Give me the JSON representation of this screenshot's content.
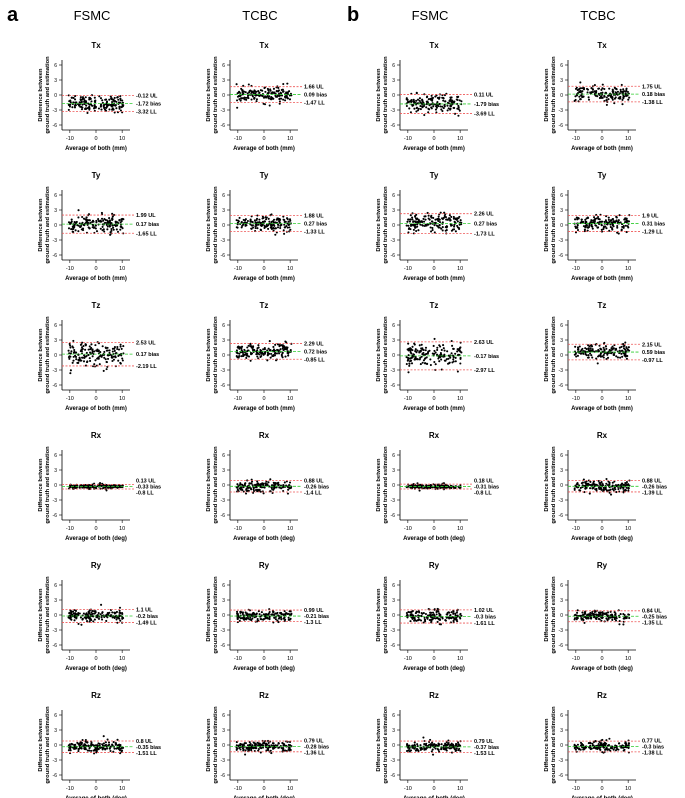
{
  "panel_letters": [
    "a",
    "b"
  ],
  "group_titles": [
    "FSMC",
    "TCBC",
    "FSMC",
    "TCBC"
  ],
  "y_axis_label": [
    "Difference between",
    "ground truth and estimation"
  ],
  "x_labels": {
    "mm": "Average of both (mm)",
    "deg": "Average of both (deg)"
  },
  "x_ticks": [
    "-10",
    "0",
    "10"
  ],
  "y_ticks": [
    "6",
    "3",
    "0",
    "-3",
    "-6"
  ],
  "colors": {
    "points": "#000000",
    "bias": "#2ecc2e",
    "limits": "#ee5555",
    "axis": "#000000"
  },
  "chart_data": {
    "type": "scatter",
    "description": "Bland-Altman plots; rows Tx,Ty,Tz,Rx,Ry,Rz; columns a-FSMC, a-TCBC, b-FSMC, b-TCBC",
    "xlim": [
      -13,
      13
    ],
    "ylim": [
      -7,
      7
    ],
    "rows": [
      "Tx",
      "Ty",
      "Tz",
      "Rx",
      "Ry",
      "Rz"
    ],
    "row_units": [
      "mm",
      "mm",
      "mm",
      "deg",
      "deg",
      "deg"
    ],
    "panels": [
      [
        {
          "title": "Tx",
          "ul": -0.12,
          "bias": -1.72,
          "ll": -3.32,
          "labels": [
            "-0.12 UL",
            "-1.72 bias",
            "-3.32 LL"
          ]
        },
        {
          "title": "Tx",
          "ul": 1.66,
          "bias": 0.09,
          "ll": -1.47,
          "labels": [
            "1.66 UL",
            "0.09 bias",
            "-1.47 LL"
          ]
        },
        {
          "title": "Tx",
          "ul": 0.11,
          "bias": -1.79,
          "ll": -3.69,
          "labels": [
            "0.11 UL",
            "-1.79 bias",
            "-3.69 LL"
          ]
        },
        {
          "title": "Tx",
          "ul": 1.75,
          "bias": 0.18,
          "ll": -1.38,
          "labels": [
            "1.75 UL",
            "0.18 bias",
            "-1.38 LL"
          ]
        }
      ],
      [
        {
          "title": "Ty",
          "ul": 1.99,
          "bias": 0.17,
          "ll": -1.65,
          "labels": [
            "1.99 UL",
            "0.17 bias",
            "-1.65 LL"
          ]
        },
        {
          "title": "Ty",
          "ul": 1.88,
          "bias": 0.27,
          "ll": -1.33,
          "labels": [
            "1.88 UL",
            "0.27 bias",
            "-1.33 LL"
          ]
        },
        {
          "title": "Ty",
          "ul": 2.26,
          "bias": 0.27,
          "ll": -1.73,
          "labels": [
            "2.26 UL",
            "0.27 bias",
            "-1.73 LL"
          ]
        },
        {
          "title": "Ty",
          "ul": 1.9,
          "bias": 0.31,
          "ll": -1.29,
          "labels": [
            "1.9 UL",
            "0.31 bias",
            "-1.29 LL"
          ]
        }
      ],
      [
        {
          "title": "Tz",
          "ul": 2.53,
          "bias": 0.17,
          "ll": -2.19,
          "labels": [
            "2.53 UL",
            "0.17 bias",
            "-2.19 LL"
          ]
        },
        {
          "title": "Tz",
          "ul": 2.29,
          "bias": 0.72,
          "ll": -0.85,
          "labels": [
            "2.29 UL",
            "0.72 bias",
            "-0.85 LL"
          ]
        },
        {
          "title": "Tz",
          "ul": 2.63,
          "bias": -0.17,
          "ll": -2.97,
          "labels": [
            "2.63 UL",
            "-0.17 bias",
            "-2.97 LL"
          ]
        },
        {
          "title": "Tz",
          "ul": 2.15,
          "bias": 0.59,
          "ll": -0.97,
          "labels": [
            "2.15 UL",
            "0.59 bias",
            "-0.97 LL"
          ]
        }
      ],
      [
        {
          "title": "Rx",
          "ul": 0.13,
          "bias": -0.33,
          "ll": -0.8,
          "labels": [
            "0.13 UL",
            "-0.33 bias",
            "-0.8 LL"
          ]
        },
        {
          "title": "Rx",
          "ul": 0.88,
          "bias": -0.26,
          "ll": -1.4,
          "labels": [
            "0.88 UL",
            "-0.26 bias",
            "-1.4 LL"
          ]
        },
        {
          "title": "Rx",
          "ul": 0.18,
          "bias": -0.31,
          "ll": -0.8,
          "labels": [
            "0.18 UL",
            "-0.31 bias",
            "-0.8 LL"
          ]
        },
        {
          "title": "Rx",
          "ul": 0.88,
          "bias": -0.26,
          "ll": -1.39,
          "labels": [
            "0.88 UL",
            "-0.26 bias",
            "-1.39 LL"
          ]
        }
      ],
      [
        {
          "title": "Ry",
          "ul": 1.1,
          "bias": -0.2,
          "ll": -1.49,
          "labels": [
            "1.1 UL",
            "-0.2 bias",
            "-1.49 LL"
          ]
        },
        {
          "title": "Ry",
          "ul": 0.99,
          "bias": -0.21,
          "ll": -1.3,
          "labels": [
            "0.99 UL",
            "-0.21 bias",
            "-1.3 LL"
          ]
        },
        {
          "title": "Ry",
          "ul": 1.02,
          "bias": -0.3,
          "ll": -1.61,
          "labels": [
            "1.02 UL",
            "-0.3 bias",
            "-1.61 LL"
          ]
        },
        {
          "title": "Ry",
          "ul": 0.84,
          "bias": -0.25,
          "ll": -1.35,
          "labels": [
            "0.84 UL",
            "-0.25 bias",
            "-1.35 LL"
          ]
        }
      ],
      [
        {
          "title": "Rz",
          "ul": 0.8,
          "bias": -0.35,
          "ll": -1.51,
          "labels": [
            "0.8 UL",
            "-0.35 bias",
            "-1.51 LL"
          ]
        },
        {
          "title": "Rz",
          "ul": 0.79,
          "bias": -0.28,
          "ll": -1.36,
          "labels": [
            "0.79 UL",
            "-0.28 bias",
            "-1.36 LL"
          ]
        },
        {
          "title": "Rz",
          "ul": 0.79,
          "bias": -0.37,
          "ll": -1.53,
          "labels": [
            "0.79 UL",
            "-0.37 bias",
            "-1.53 LL"
          ]
        },
        {
          "title": "Rz",
          "ul": 0.77,
          "bias": -0.3,
          "ll": -1.38,
          "labels": [
            "0.77 UL",
            "-0.3 bias",
            "-1.38 LL"
          ]
        }
      ]
    ]
  }
}
